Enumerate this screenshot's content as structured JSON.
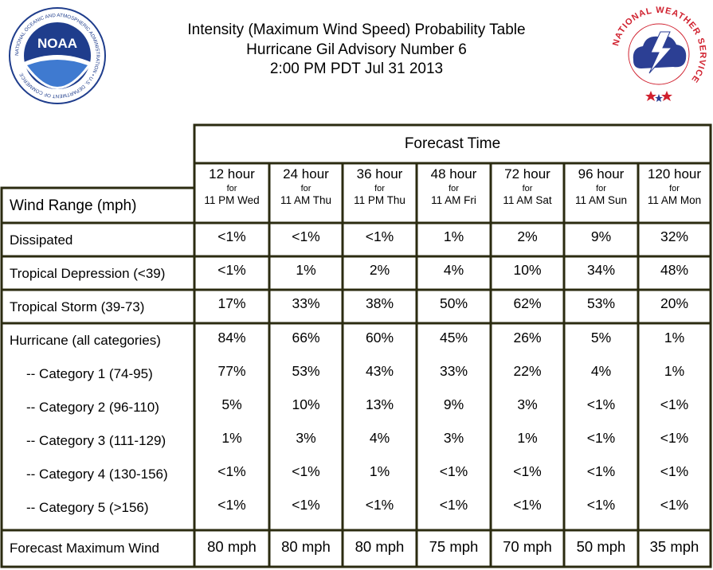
{
  "header": {
    "title_line1": "Intensity (Maximum Wind Speed) Probability Table",
    "title_line2": "Hurricane Gil Advisory Number 6",
    "title_line3": "2:00 PM PDT Jul 31 2013"
  },
  "logos": {
    "noaa": {
      "text": "NOAA",
      "ring_text": "NATIONAL OCEANIC AND ATMOSPHERIC ADMINISTRATION • U.S. DEPARTMENT OF COMMERCE"
    },
    "nws": {
      "ring_text": "NATIONAL WEATHER SERVICE"
    }
  },
  "table": {
    "forecast_time_label": "Forecast Time",
    "wind_range_label": "Wind Range (mph)",
    "columns": [
      {
        "hour": "12 hour",
        "for": "for",
        "when": "11 PM Wed"
      },
      {
        "hour": "24 hour",
        "for": "for",
        "when": "11 AM Thu"
      },
      {
        "hour": "36 hour",
        "for": "for",
        "when": "11 PM Thu"
      },
      {
        "hour": "48 hour",
        "for": "for",
        "when": "11 AM Fri"
      },
      {
        "hour": "72 hour",
        "for": "for",
        "when": "11 AM Sat"
      },
      {
        "hour": "96 hour",
        "for": "for",
        "when": "11 AM Sun"
      },
      {
        "hour": "120 hour",
        "for": "for",
        "when": "11 AM Mon"
      }
    ],
    "rows": [
      {
        "label": "Dissipated",
        "values": [
          "<1%",
          "<1%",
          "<1%",
          "1%",
          "2%",
          "9%",
          "32%"
        ]
      },
      {
        "label": "Tropical Depression (<39)",
        "values": [
          "<1%",
          "1%",
          "2%",
          "4%",
          "10%",
          "34%",
          "48%"
        ]
      },
      {
        "label": "Tropical Storm (39-73)",
        "values": [
          "17%",
          "33%",
          "38%",
          "50%",
          "62%",
          "53%",
          "20%"
        ]
      },
      {
        "label": "Hurricane (all categories)",
        "values": [
          "84%",
          "66%",
          "60%",
          "45%",
          "26%",
          "5%",
          "1%"
        ]
      },
      {
        "label": "-- Category 1 (74-95)",
        "values": [
          "77%",
          "53%",
          "43%",
          "33%",
          "22%",
          "4%",
          "1%"
        ]
      },
      {
        "label": "-- Category 2 (96-110)",
        "values": [
          "5%",
          "10%",
          "13%",
          "9%",
          "3%",
          "<1%",
          "<1%"
        ]
      },
      {
        "label": "-- Category 3 (111-129)",
        "values": [
          "1%",
          "3%",
          "4%",
          "3%",
          "1%",
          "<1%",
          "<1%"
        ]
      },
      {
        "label": "-- Category 4 (130-156)",
        "values": [
          "<1%",
          "<1%",
          "1%",
          "<1%",
          "<1%",
          "<1%",
          "<1%"
        ]
      },
      {
        "label": "-- Category 5 (>156)",
        "values": [
          "<1%",
          "<1%",
          "<1%",
          "<1%",
          "<1%",
          "<1%",
          "<1%"
        ]
      },
      {
        "label": "Forecast Maximum Wind",
        "values": [
          "80 mph",
          "80 mph",
          "80 mph",
          "75 mph",
          "70 mph",
          "50 mph",
          "35 mph"
        ]
      }
    ]
  },
  "colors": {
    "border": "#2b2b10",
    "noaa_blue": "#1f3d8c",
    "nws_red": "#d0202e",
    "nws_blue": "#2c3f94"
  }
}
